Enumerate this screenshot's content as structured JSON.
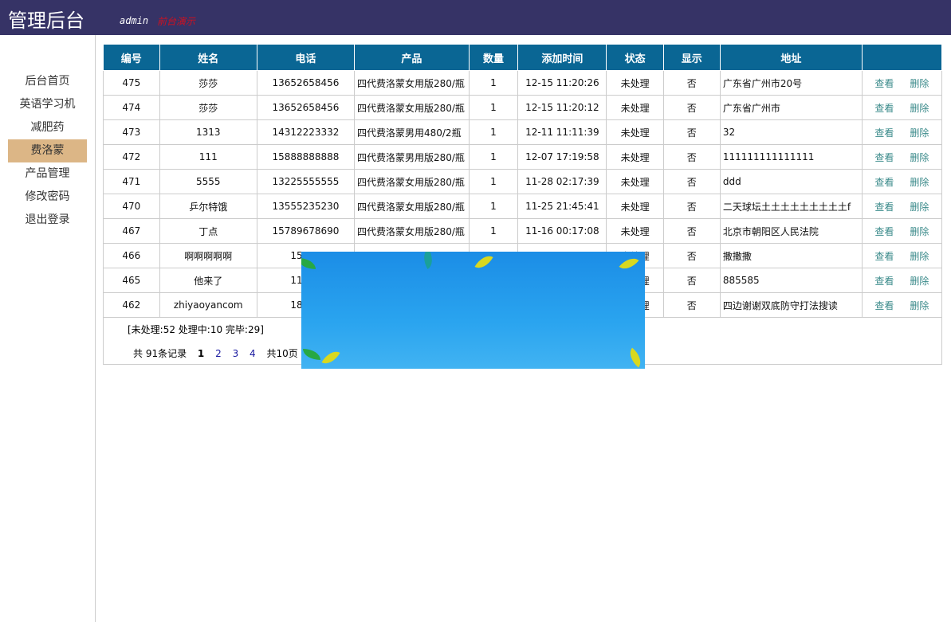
{
  "header": {
    "title": "管理后台",
    "user": "admin",
    "front_link": "前台演示"
  },
  "sidebar": {
    "items": [
      {
        "label": "后台首页"
      },
      {
        "label": "英语学习机"
      },
      {
        "label": "减肥药"
      },
      {
        "label": "费洛蒙",
        "active": true
      },
      {
        "label": "产品管理"
      },
      {
        "label": "修改密码"
      },
      {
        "label": "退出登录"
      }
    ]
  },
  "table": {
    "columns": [
      "编号",
      "姓名",
      "电话",
      "产品",
      "数量",
      "添加时间",
      "状态",
      "显示",
      "地址",
      ""
    ],
    "rows": [
      [
        "475",
        "莎莎",
        "13652658456",
        "四代费洛蒙女用版280/瓶",
        "1",
        "12-15 11:20:26",
        "未处理",
        "否",
        "广东省广州市20号"
      ],
      [
        "474",
        "莎莎",
        "13652658456",
        "四代费洛蒙女用版280/瓶",
        "1",
        "12-15 11:20:12",
        "未处理",
        "否",
        "广东省广州市"
      ],
      [
        "473",
        "1313",
        "14312223332",
        "四代费洛蒙男用480/2瓶",
        "1",
        "12-11 11:11:39",
        "未处理",
        "否",
        "32"
      ],
      [
        "472",
        "111",
        "15888888888",
        "四代费洛蒙男用版280/瓶",
        "1",
        "12-07 17:19:58",
        "未处理",
        "否",
        "111111111111111"
      ],
      [
        "471",
        "5555",
        "13225555555",
        "四代费洛蒙女用版280/瓶",
        "1",
        "11-28 02:17:39",
        "未处理",
        "否",
        "ddd"
      ],
      [
        "470",
        "乒尔特饿",
        "13555235230",
        "四代费洛蒙女用版280/瓶",
        "1",
        "11-25 21:45:41",
        "未处理",
        "否",
        "二天球坛土土土土土土土土土f"
      ],
      [
        "467",
        "丁点",
        "15789678690",
        "四代费洛蒙女用版280/瓶",
        "1",
        "11-16 00:17:08",
        "未处理",
        "否",
        "北京市朝阳区人民法院"
      ],
      [
        "466",
        "啊啊啊啊啊",
        "15046",
        "",
        "",
        "",
        "未处理",
        "否",
        "撒撒撒"
      ],
      [
        "465",
        "他来了",
        "11115",
        "",
        "",
        "",
        "未处理",
        "否",
        "885585"
      ],
      [
        "462",
        "zhiyaoyancom",
        "18600",
        "",
        "",
        "",
        "未处理",
        "否",
        "四边谢谢双底防守打法搜读"
      ]
    ],
    "view_label": "查看",
    "delete_label": "删除"
  },
  "footer": {
    "counts": "[未处理:52  处理中:10  完毕:29]",
    "total": "共 91条记录",
    "current_page": "1",
    "pages": [
      "2",
      "3",
      "4"
    ],
    "page_total": "共10页"
  }
}
